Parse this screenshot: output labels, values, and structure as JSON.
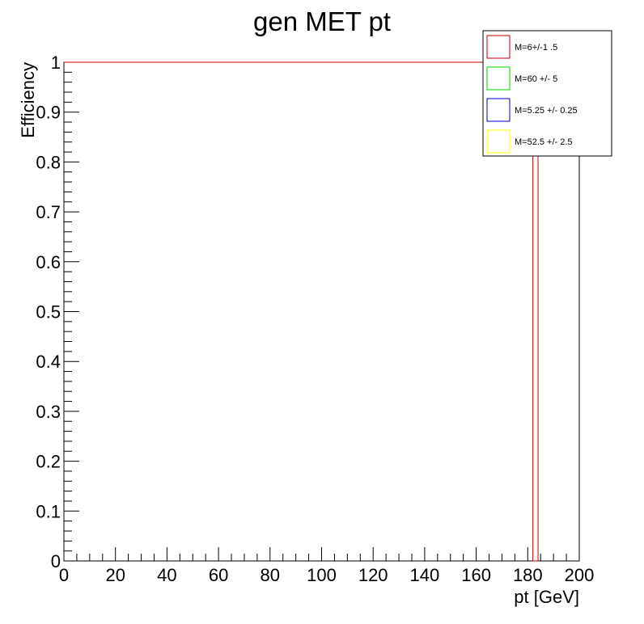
{
  "chart_data": {
    "type": "line",
    "title": "gen MET pt",
    "xlabel": "pt [GeV]",
    "ylabel": "Efficiency",
    "xlim": [
      0,
      200
    ],
    "ylim": [
      0,
      1
    ],
    "x_ticks": [
      "0",
      "20",
      "40",
      "60",
      "80",
      "100",
      "120",
      "140",
      "160",
      "180",
      "200"
    ],
    "y_ticks": [
      "0",
      "0.1",
      "0.2",
      "0.3",
      "0.4",
      "0.5",
      "0.6",
      "0.7",
      "0.8",
      "0.9",
      "1"
    ],
    "grid": false,
    "legend_position": "top-right",
    "series": [
      {
        "name": "M=6+/-1 .5",
        "color": "#cc0000",
        "points": [
          [
            0,
            1
          ],
          [
            182,
            1
          ],
          [
            182,
            0
          ],
          [
            184,
            0
          ],
          [
            184,
            1
          ],
          [
            200,
            1
          ]
        ]
      },
      {
        "name": "M=60 +/- 5",
        "color": "#00cc00",
        "points": []
      },
      {
        "name": "M=5.25 +/- 0.25",
        "color": "#0000cc",
        "points": []
      },
      {
        "name": "M=52.5 +/- 2.5",
        "color": "#ffff00",
        "points": []
      }
    ]
  }
}
